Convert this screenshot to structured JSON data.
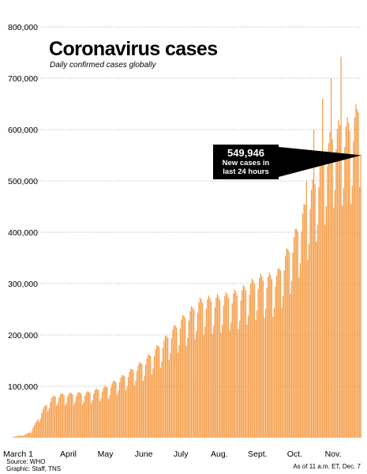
{
  "title": "Coronavirus cases",
  "subtitle": "Daily confirmed cases globally",
  "callout": {
    "value": "549,946",
    "text1": "New cases in",
    "text2": "last 24 hours"
  },
  "source": "Source: WHO",
  "graphic": "Graphic: Staff, TNS",
  "asof": "As of 11 a.m. ET, Dec. 7",
  "colors": {
    "bar": "#f5a04e",
    "grid": "#9a9a9a",
    "callout_bg": "#000000"
  },
  "chart_data": {
    "type": "bar",
    "title": "Coronavirus cases",
    "subtitle": "Daily confirmed cases globally",
    "ylim": [
      0,
      800000
    ],
    "yticks": [
      100000,
      200000,
      300000,
      400000,
      500000,
      600000,
      700000,
      800000
    ],
    "ytick_labels": [
      "100,000",
      "200,000",
      "300,000",
      "400,000",
      "500,000",
      "600,000",
      "700,000",
      "800,000"
    ],
    "x_start": "2020-03-01",
    "x_end": "2020-12-07",
    "xtick_labels": [
      "March 1",
      "April",
      "May",
      "June",
      "July",
      "Aug.",
      "Sept.",
      "Oct.",
      "Nov."
    ],
    "xtick_dates": [
      "2020-03-01",
      "2020-04-15",
      "2020-05-15",
      "2020-06-15",
      "2020-07-15",
      "2020-08-15",
      "2020-09-15",
      "2020-10-15",
      "2020-11-15"
    ],
    "grid": "horizontal dotted",
    "annotation": {
      "date": "2020-12-07",
      "value": 549946,
      "label": "549,946 New cases in last 24 hours"
    },
    "weekly_pattern": [
      0.8,
      0.86,
      1.0,
      1.07,
      1.1,
      1.08,
      1.05
    ],
    "trend": [
      [
        "2020-03-01",
        2000
      ],
      [
        "2020-03-10",
        5000
      ],
      [
        "2020-03-15",
        11000
      ],
      [
        "2020-03-20",
        30000
      ],
      [
        "2020-03-25",
        52000
      ],
      [
        "2020-04-01",
        72000
      ],
      [
        "2020-04-05",
        78000
      ],
      [
        "2020-04-15",
        80000
      ],
      [
        "2020-04-30",
        82000
      ],
      [
        "2020-05-15",
        92000
      ],
      [
        "2020-05-31",
        115000
      ],
      [
        "2020-06-15",
        140000
      ],
      [
        "2020-06-30",
        175000
      ],
      [
        "2020-07-15",
        215000
      ],
      [
        "2020-07-31",
        250000
      ],
      [
        "2020-08-15",
        255000
      ],
      [
        "2020-08-31",
        265000
      ],
      [
        "2020-09-15",
        290000
      ],
      [
        "2020-09-30",
        295000
      ],
      [
        "2020-10-15",
        370000
      ],
      [
        "2020-10-31",
        470000
      ],
      [
        "2020-11-15",
        560000
      ],
      [
        "2020-11-30",
        570000
      ],
      [
        "2020-12-06",
        610000
      ]
    ],
    "peaks": [
      [
        "2020-11-21",
        742000
      ],
      [
        "2020-11-13",
        700000
      ],
      [
        "2020-11-06",
        660000
      ],
      [
        "2020-12-04",
        640000
      ],
      [
        "2020-10-30",
        600000
      ],
      [
        "2020-10-24",
        500000
      ],
      [
        "2020-12-07",
        549946
      ]
    ]
  }
}
